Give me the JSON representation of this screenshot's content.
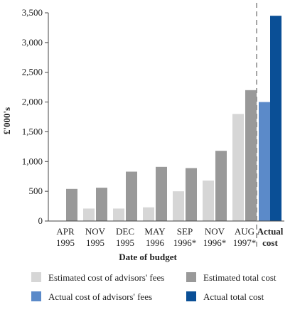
{
  "chart_data": {
    "type": "bar",
    "ylabel": "£'000's",
    "xlabel": "Date of budget",
    "ylim": [
      0,
      3500
    ],
    "yticks": [
      0,
      500,
      1000,
      1500,
      2000,
      2500,
      3000,
      3500
    ],
    "ytick_labels": [
      "0",
      "500",
      "1,000",
      "1,500",
      "2,000",
      "2,500",
      "3,000",
      "3,500"
    ],
    "grid": false,
    "legend_position": "bottom",
    "categories": [
      {
        "line1": "APR",
        "line2": "1995"
      },
      {
        "line1": "NOV",
        "line2": "1995"
      },
      {
        "line1": "DEC",
        "line2": "1995"
      },
      {
        "line1": "MAY",
        "line2": "1996"
      },
      {
        "line1": "SEP",
        "line2": "1996*"
      },
      {
        "line1": "NOV",
        "line2": "1996*"
      },
      {
        "line1": "AUG",
        "line2": "1997*"
      }
    ],
    "series": [
      {
        "name": "Estimated cost of advisors' fees",
        "color": "#d6d6d6",
        "values": [
          0,
          210,
          210,
          230,
          500,
          680,
          1800
        ]
      },
      {
        "name": "Estimated total cost",
        "color": "#999999",
        "values": [
          540,
          560,
          830,
          910,
          890,
          1180,
          2200
        ]
      }
    ],
    "actual": {
      "label_line1": "Actual",
      "label_line2": "cost",
      "series": [
        {
          "name": "Actual cost of advisors' fees",
          "color": "#5b8ac9",
          "value": 2000
        },
        {
          "name": "Actual total cost",
          "color": "#0a4f96",
          "value": 3450
        }
      ]
    }
  }
}
